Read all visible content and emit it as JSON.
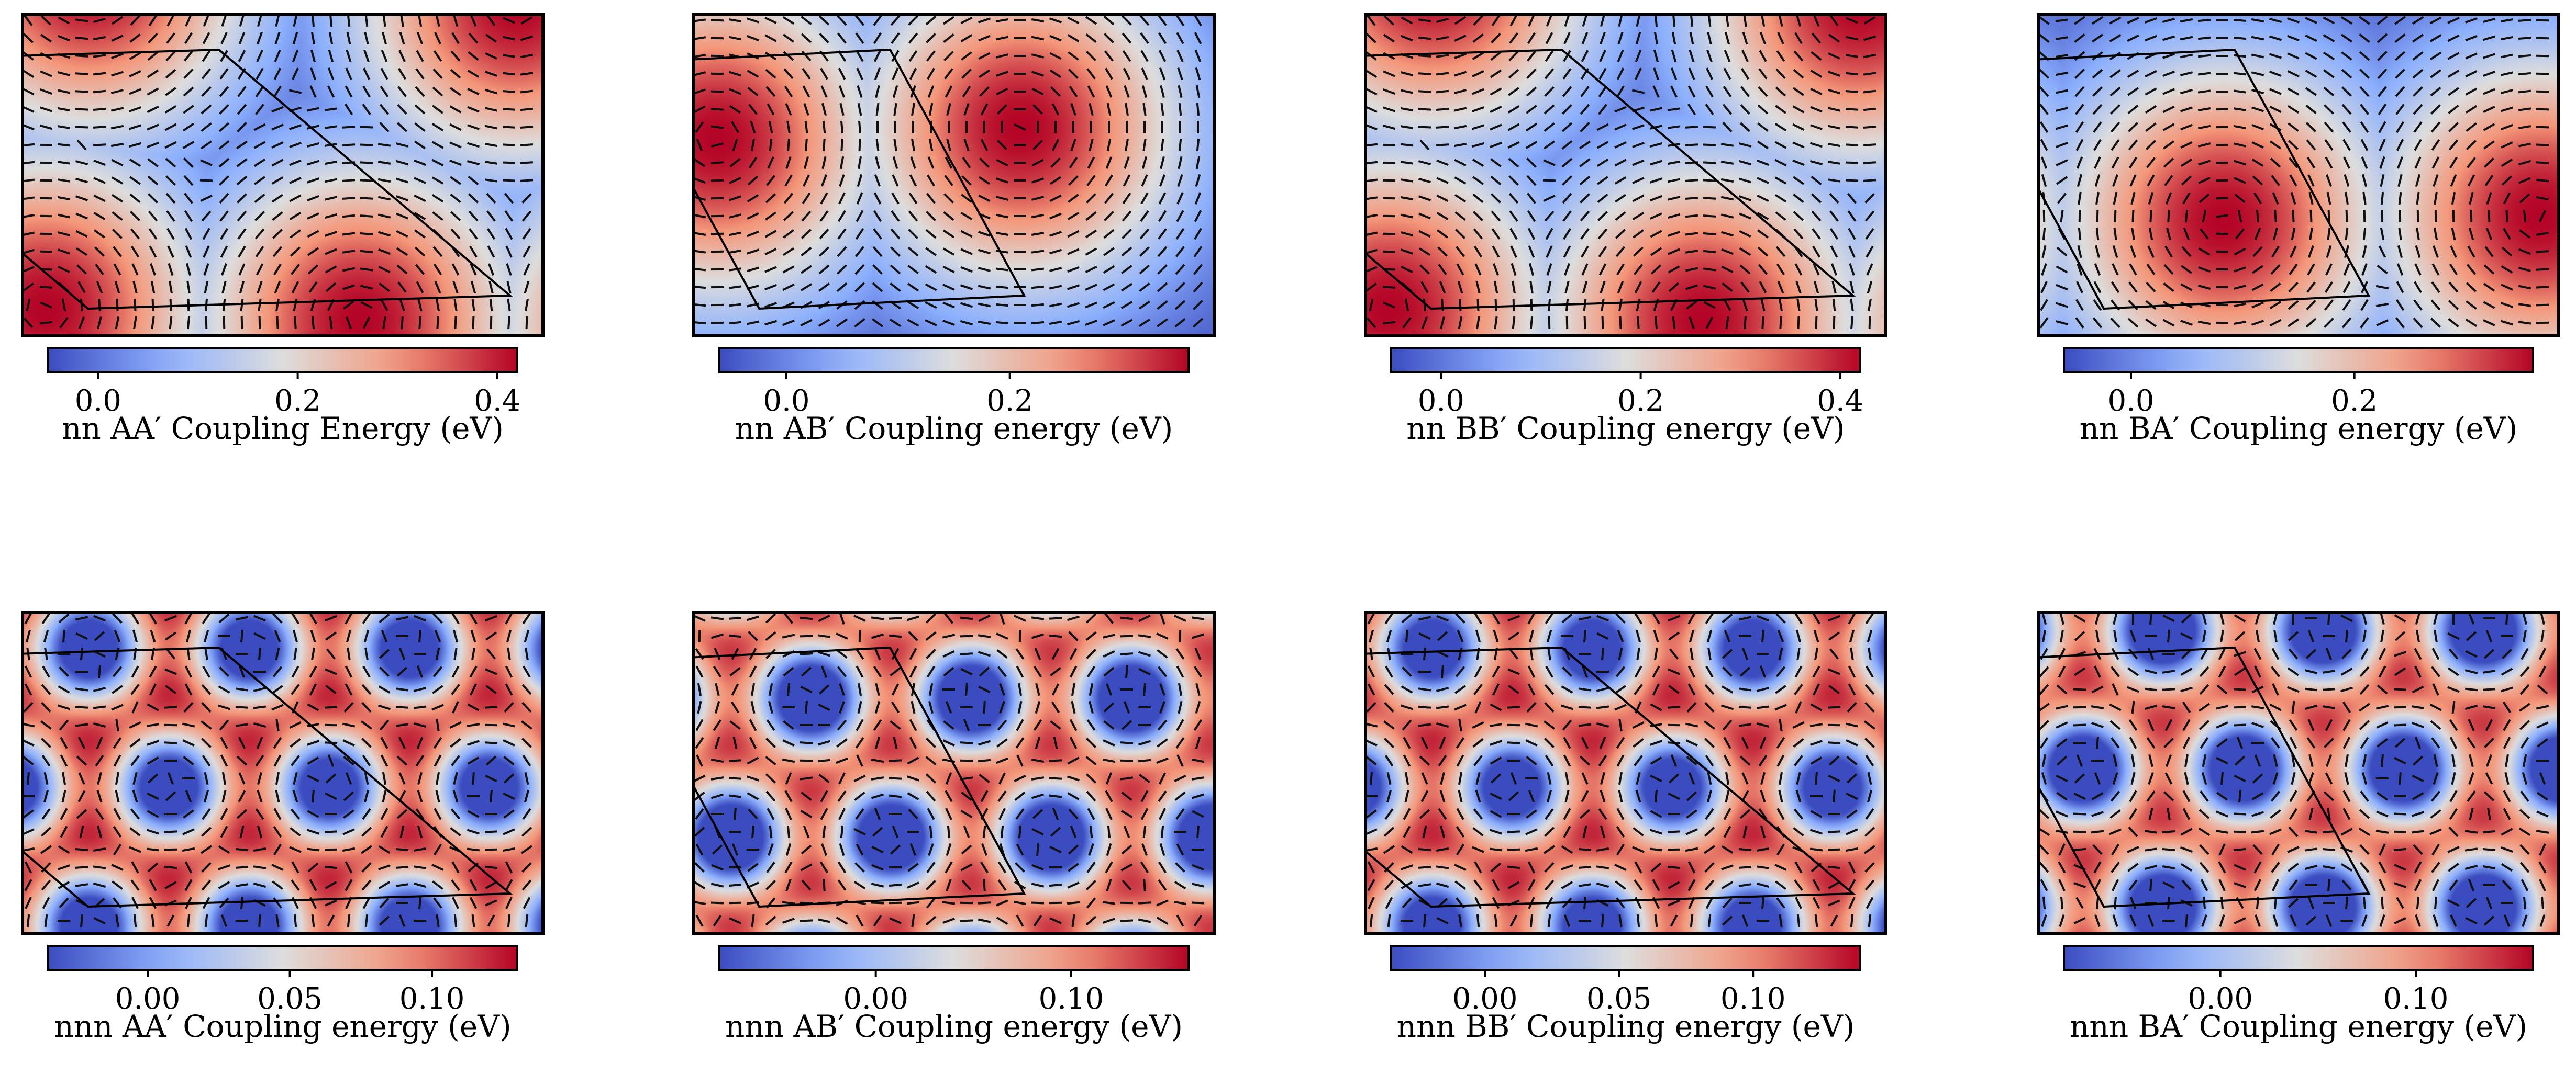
{
  "chart_data": [
    {
      "type": "heatmap",
      "pattern": "nn-AA",
      "colormap": "coolwarm",
      "vrange": [
        -0.05,
        0.42
      ],
      "ticks": [
        0.0,
        0.2,
        0.4
      ],
      "tick_labels": [
        "0.0",
        "0.2",
        "0.4"
      ],
      "colorbar_label": "nn AA′ Coupling Energy (eV)",
      "arrow_overlay": true,
      "unit_cell_outline": true
    },
    {
      "type": "heatmap",
      "pattern": "nn-AB",
      "colormap": "coolwarm",
      "vrange": [
        -0.06,
        0.36
      ],
      "ticks": [
        0.0,
        0.2
      ],
      "tick_labels": [
        "0.0",
        "0.2"
      ],
      "colorbar_label": "nn AB′ Coupling energy (eV)",
      "arrow_overlay": true,
      "unit_cell_outline": true
    },
    {
      "type": "heatmap",
      "pattern": "nn-BB",
      "colormap": "coolwarm",
      "vrange": [
        -0.05,
        0.42
      ],
      "ticks": [
        0.0,
        0.2,
        0.4
      ],
      "tick_labels": [
        "0.0",
        "0.2",
        "0.4"
      ],
      "colorbar_label": "nn BB′ Coupling energy (eV)",
      "arrow_overlay": true,
      "unit_cell_outline": true
    },
    {
      "type": "heatmap",
      "pattern": "nn-BA",
      "colormap": "coolwarm",
      "vrange": [
        -0.06,
        0.36
      ],
      "ticks": [
        0.0,
        0.2
      ],
      "tick_labels": [
        "0.0",
        "0.2"
      ],
      "colorbar_label": "nn BA′ Coupling energy (eV)",
      "arrow_overlay": true,
      "unit_cell_outline": true
    },
    {
      "type": "heatmap",
      "pattern": "nnn-AA",
      "colormap": "coolwarm",
      "vrange": [
        -0.035,
        0.13
      ],
      "ticks": [
        0.0,
        0.05,
        0.1
      ],
      "tick_labels": [
        "0.00",
        "0.05",
        "0.10"
      ],
      "colorbar_label": "nnn AA′ Coupling energy (eV)",
      "arrow_overlay": true,
      "unit_cell_outline": true
    },
    {
      "type": "heatmap",
      "pattern": "nnn-AB",
      "colormap": "coolwarm",
      "vrange": [
        -0.08,
        0.16
      ],
      "ticks": [
        0.0,
        0.1
      ],
      "tick_labels": [
        "0.00",
        "0.10"
      ],
      "colorbar_label": "nnn AB′ Coupling energy (eV)",
      "arrow_overlay": true,
      "unit_cell_outline": true
    },
    {
      "type": "heatmap",
      "pattern": "nnn-BB",
      "colormap": "coolwarm",
      "vrange": [
        -0.035,
        0.14
      ],
      "ticks": [
        0.0,
        0.05,
        0.1
      ],
      "tick_labels": [
        "0.00",
        "0.05",
        "0.10"
      ],
      "colorbar_label": "nnn BB′ Coupling energy (eV)",
      "arrow_overlay": true,
      "unit_cell_outline": true
    },
    {
      "type": "heatmap",
      "pattern": "nnn-BA",
      "colormap": "coolwarm",
      "vrange": [
        -0.08,
        0.16
      ],
      "ticks": [
        0.0,
        0.1
      ],
      "tick_labels": [
        "0.00",
        "0.10"
      ],
      "colorbar_label": "nnn BA′ Coupling energy (eV)",
      "arrow_overlay": true,
      "unit_cell_outline": true
    }
  ]
}
